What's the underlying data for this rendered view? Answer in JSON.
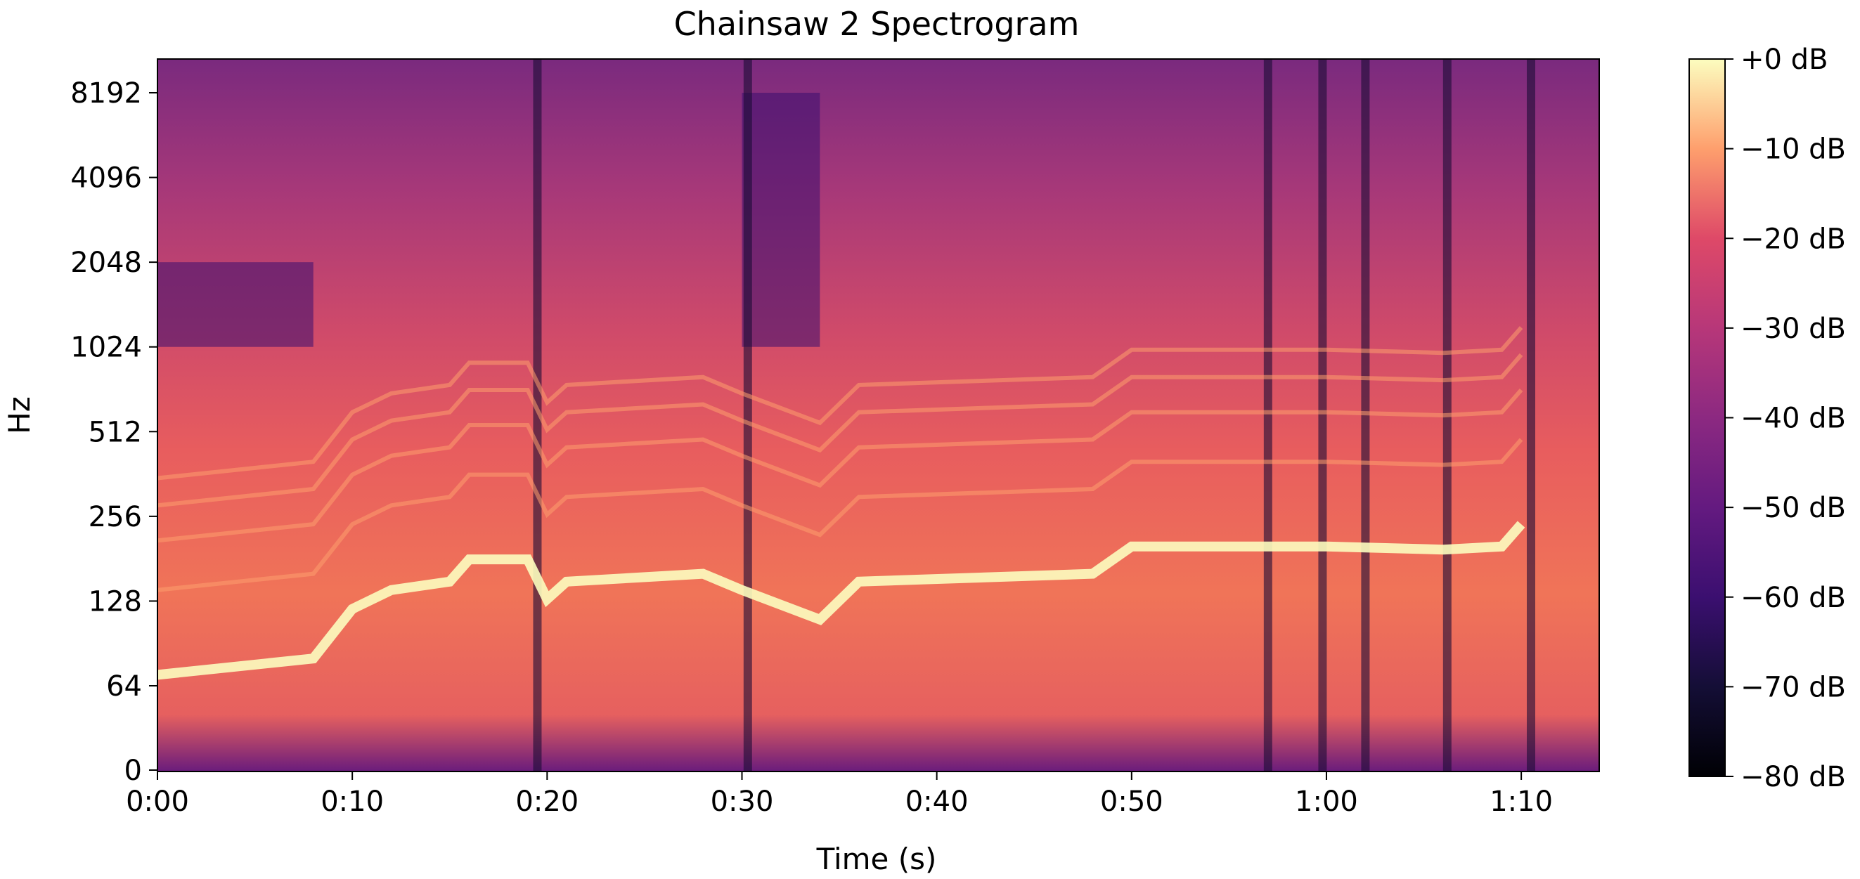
{
  "chart_data": {
    "type": "heatmap",
    "title": "Chainsaw 2 Spectrogram",
    "xlabel": "Time (s)",
    "ylabel": "Hz",
    "x_scale": "time",
    "y_scale": "log",
    "xlim": [
      0,
      74
    ],
    "x_ticks": [
      {
        "value": 0,
        "label": "0:00"
      },
      {
        "value": 10,
        "label": "0:10"
      },
      {
        "value": 20,
        "label": "0:20"
      },
      {
        "value": 30,
        "label": "0:30"
      },
      {
        "value": 40,
        "label": "0:40"
      },
      {
        "value": 50,
        "label": "0:50"
      },
      {
        "value": 60,
        "label": "1:00"
      },
      {
        "value": 70,
        "label": "1:10"
      }
    ],
    "y_ticks": [
      {
        "value": 0,
        "label": "0"
      },
      {
        "value": 64,
        "label": "64"
      },
      {
        "value": 128,
        "label": "128"
      },
      {
        "value": 256,
        "label": "256"
      },
      {
        "value": 512,
        "label": "512"
      },
      {
        "value": 1024,
        "label": "1024"
      },
      {
        "value": 2048,
        "label": "2048"
      },
      {
        "value": 4096,
        "label": "4096"
      },
      {
        "value": 8192,
        "label": "8192"
      }
    ],
    "colorbar": {
      "colormap": "magma",
      "range_db": [
        -80,
        0
      ],
      "ticks": [
        {
          "value": 0,
          "label": "+0 dB"
        },
        {
          "value": -10,
          "label": "−10 dB"
        },
        {
          "value": -20,
          "label": "−20 dB"
        },
        {
          "value": -30,
          "label": "−30 dB"
        },
        {
          "value": -40,
          "label": "−40 dB"
        },
        {
          "value": -50,
          "label": "−50 dB"
        },
        {
          "value": -60,
          "label": "−60 dB"
        },
        {
          "value": -70,
          "label": "−70 dB"
        },
        {
          "value": -80,
          "label": "−80 dB"
        }
      ]
    },
    "fundamental_track_hz": [
      {
        "t": 0,
        "hz": 70
      },
      {
        "t": 8,
        "hz": 80
      },
      {
        "t": 10,
        "hz": 120
      },
      {
        "t": 12,
        "hz": 140
      },
      {
        "t": 15,
        "hz": 150
      },
      {
        "t": 16,
        "hz": 180
      },
      {
        "t": 19,
        "hz": 180
      },
      {
        "t": 20,
        "hz": 130
      },
      {
        "t": 21,
        "hz": 150
      },
      {
        "t": 28,
        "hz": 160
      },
      {
        "t": 30,
        "hz": 140
      },
      {
        "t": 34,
        "hz": 110
      },
      {
        "t": 36,
        "hz": 150
      },
      {
        "t": 48,
        "hz": 160
      },
      {
        "t": 50,
        "hz": 200
      },
      {
        "t": 60,
        "hz": 200
      },
      {
        "t": 66,
        "hz": 195
      },
      {
        "t": 69,
        "hz": 200
      },
      {
        "t": 70,
        "hz": 240
      }
    ],
    "dropouts_s": [
      19.5,
      30.3,
      57.0,
      59.8,
      62.0,
      66.2,
      70.5
    ],
    "low_energy_regions": [
      {
        "t_start": 0,
        "t_end": 8,
        "hz_low": 1024,
        "hz_high": 2048
      },
      {
        "t_start": 30,
        "t_end": 34,
        "hz_low": 1024,
        "hz_high": 8192
      }
    ]
  }
}
